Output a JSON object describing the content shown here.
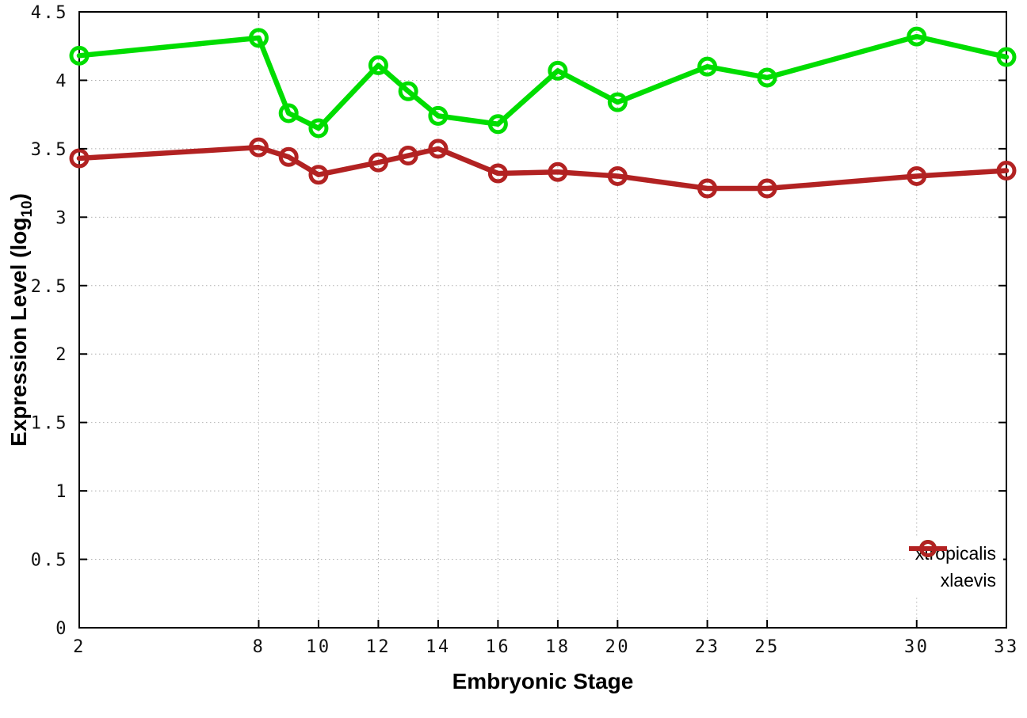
{
  "labels": {
    "ylabel_prefix": "Expression Level (log",
    "ylabel_sub": "10",
    "ylabel_suffix": ")"
  },
  "colors": {
    "background": "#ffffff",
    "axis": "#000000",
    "grid": "#b0b0b0",
    "tick_text": "#111111",
    "xtropicalis": "#00dd00",
    "xlaevis": "#b22222"
  },
  "chart_data": {
    "type": "line",
    "xlabel": "Embryonic Stage",
    "ylabel": "Expression Level (log10)",
    "xlim": [
      2,
      33
    ],
    "ylim": [
      0,
      4.5
    ],
    "x_ticks": [
      2,
      8,
      10,
      12,
      14,
      16,
      18,
      20,
      23,
      25,
      30,
      33
    ],
    "y_ticks": [
      0,
      0.5,
      1,
      1.5,
      2,
      2.5,
      3,
      3.5,
      4,
      4.5
    ],
    "grid": true,
    "legend_position": "bottom-right",
    "marker": "open-circle",
    "x": [
      2,
      8,
      9,
      10,
      12,
      13,
      14,
      16,
      18,
      20,
      23,
      25,
      30,
      33
    ],
    "series": [
      {
        "name": "xtropicalis",
        "color": "#00dd00",
        "values": [
          4.18,
          4.31,
          3.76,
          3.65,
          4.11,
          3.92,
          3.74,
          3.68,
          4.07,
          3.84,
          4.1,
          4.02,
          4.32,
          4.17
        ]
      },
      {
        "name": "xlaevis",
        "color": "#b22222",
        "values": [
          3.43,
          3.51,
          3.44,
          3.31,
          3.4,
          3.45,
          3.5,
          3.32,
          3.33,
          3.3,
          3.21,
          3.21,
          3.3,
          3.34
        ]
      }
    ]
  }
}
